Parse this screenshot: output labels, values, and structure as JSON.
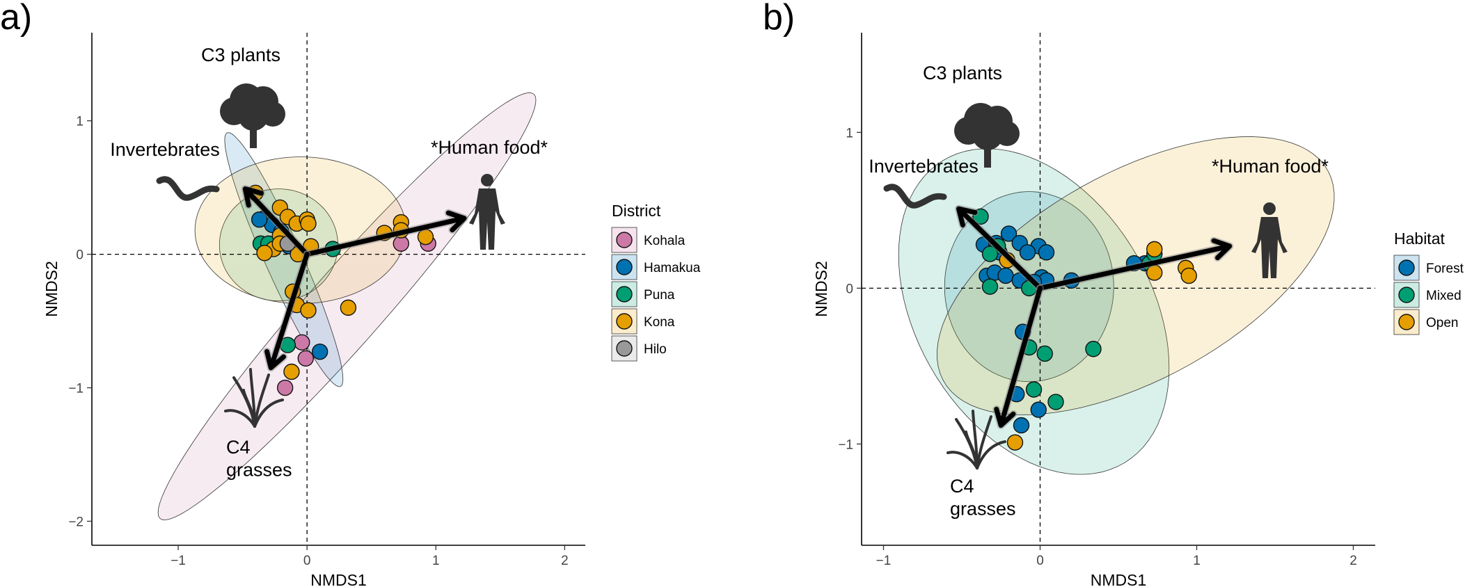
{
  "chart_data": [
    {
      "type": "scatter",
      "panel_label": "a)",
      "x_label": "NMDS1",
      "y_label": "NMDS2",
      "xlim": [
        -1.67,
        2.16
      ],
      "ylim": [
        -2.18,
        1.66
      ],
      "xticks": [
        {
          "value": -1,
          "label": "−1"
        },
        0,
        1,
        2
      ],
      "yticks": [
        {
          "value": -2,
          "label": "−2"
        },
        {
          "value": -1,
          "label": "−1"
        },
        0,
        1
      ],
      "legend_title": "District",
      "series": [
        {
          "name": "Kohala",
          "color": "#cc79a7",
          "x": [
            -0.04,
            -0.01,
            -0.17,
            0.73,
            0.94
          ],
          "values": [
            -0.66,
            -0.78,
            -1.0,
            0.08,
            0.08
          ],
          "ellipse": {
            "center": [
              0.31,
              -0.39
            ],
            "a": [
              1.45,
              1.59
            ],
            "b": [
              0.22,
              -0.18
            ]
          }
        },
        {
          "name": "Hamakua",
          "color": "#0072b2",
          "x": [
            -0.33,
            -0.27,
            -0.2,
            -0.14,
            0.1,
            -0.37
          ],
          "values": [
            0.27,
            0.22,
            0.17,
            0.06,
            -0.73,
            0.26
          ],
          "ellipse": {
            "center": [
              -0.18,
              -0.04
            ],
            "a": [
              0.44,
              -0.95
            ],
            "b": [
              0.13,
              0.06
            ]
          }
        },
        {
          "name": "Puna",
          "color": "#009e73",
          "x": [
            0.2,
            -0.36,
            -0.15,
            -0.3
          ],
          "values": [
            0.04,
            0.08,
            -0.68,
            0.08
          ],
          "ellipse": {
            "center": [
              -0.22,
              0.07
            ],
            "a": [
              0.46,
              0
            ],
            "b": [
              0,
              0.42
            ]
          }
        },
        {
          "name": "Kona",
          "color": "#e69f00",
          "x": [
            -0.4,
            -0.21,
            -0.15,
            -0.08,
            0,
            0.01,
            -0.21,
            -0.26,
            -0.33,
            -0.07,
            0.03,
            -0.11,
            -0.08,
            0.01,
            0.32,
            0.6,
            0.73,
            0.73,
            0.92,
            -0.12,
            -0.21
          ],
          "values": [
            0.46,
            0.35,
            0.28,
            0.23,
            0.26,
            0.23,
            0.14,
            0.04,
            0.01,
            0,
            0.06,
            -0.28,
            -0.38,
            -0.42,
            -0.4,
            0.16,
            0.24,
            0.18,
            0.13,
            -0.88,
            0.08
          ],
          "ellipse": {
            "center": [
              -0.05,
              0.18
            ],
            "a": [
              0.82,
              0
            ],
            "b": [
              0,
              0.55
            ]
          }
        },
        {
          "name": "Hilo",
          "color": "#999999",
          "x": [
            -0.15
          ],
          "values": [
            0.08
          ]
        }
      ],
      "arrows": [
        {
          "x": -0.48,
          "y": 0.49
        },
        {
          "x": 1.22,
          "y": 0.27
        },
        {
          "x": -0.28,
          "y": -0.85
        }
      ],
      "annotations": [
        "C3 plants",
        "Invertebrates",
        "*Human food*",
        "C4\ngrasses"
      ]
    },
    {
      "type": "scatter",
      "panel_label": "b)",
      "x_label": "NMDS1",
      "y_label": "NMDS2",
      "xlim": [
        -1.14,
        2.14
      ],
      "ylim": [
        -1.65,
        1.64
      ],
      "xticks": [
        {
          "value": -1,
          "label": "−1"
        },
        0,
        1,
        2
      ],
      "yticks": [
        {
          "value": -1,
          "label": "−1"
        },
        0,
        1
      ],
      "legend_title": "Habitat",
      "series": [
        {
          "name": "Forest",
          "color": "#0072b2",
          "x": [
            -0.36,
            -0.28,
            -0.2,
            -0.13,
            -0.01,
            0.04,
            -0.26,
            -0.08,
            -0.34,
            -0.29,
            -0.22,
            -0.13,
            0.01,
            0.04,
            0.2,
            0.67,
            0.6,
            -0.11,
            -0.15,
            -0.12,
            -0.01,
            -0.04
          ],
          "values": [
            0.28,
            0.29,
            0.35,
            0.29,
            0.27,
            0.23,
            0.23,
            0.23,
            0.08,
            0.1,
            0.08,
            0.05,
            0.07,
            0.05,
            0.05,
            0.16,
            0.16,
            -0.28,
            -0.68,
            -0.88,
            -0.78,
            0.04
          ],
          "ellipse": {
            "center": [
              -0.07,
              0.01
            ],
            "a": [
              0.54,
              0
            ],
            "b": [
              0,
              0.61
            ]
          }
        },
        {
          "name": "Mixed",
          "color": "#009e73",
          "x": [
            -0.38,
            -0.27,
            -0.32,
            -0.32,
            0.7,
            0.73,
            -0.07,
            0.03,
            0.34,
            -0.04,
            0.1,
            -0.07
          ],
          "values": [
            0.46,
            0.27,
            0.22,
            0.01,
            0.16,
            0.22,
            -0.38,
            -0.42,
            -0.39,
            -0.65,
            -0.73,
            0
          ],
          "ellipse": {
            "center": [
              -0.04,
              -0.15
            ],
            "a": [
              0.58,
              -0.97
            ],
            "b": [
              0.64,
              0.39
            ]
          }
        },
        {
          "name": "Open",
          "color": "#e69f00",
          "x": [
            -0.16,
            0.73,
            0.73,
            0.93,
            0.95,
            -0.21
          ],
          "values": [
            -0.99,
            0.25,
            0.1,
            0.13,
            0.08,
            0.18
          ],
          "ellipse": {
            "center": [
              0.61,
              0.08
            ],
            "a": [
              1.23,
              0.67
            ],
            "b": [
              0.31,
              -0.59
            ]
          }
        }
      ],
      "arrows": [
        {
          "x": -0.52,
          "y": 0.51
        },
        {
          "x": 1.21,
          "y": 0.27
        },
        {
          "x": -0.25,
          "y": -0.88
        }
      ],
      "annotations": [
        "C3 plants",
        "Invertebrates",
        "*Human food*",
        "C4\ngrasses"
      ]
    }
  ]
}
